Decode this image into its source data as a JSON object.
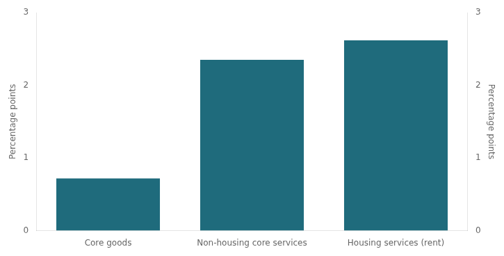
{
  "chart_data": {
    "type": "bar",
    "categories": [
      "Core goods",
      "Non-housing core services",
      "Housing services (rent)"
    ],
    "values": [
      0.72,
      2.35,
      2.62
    ],
    "color": "#1f6b7c",
    "ylim": [
      0,
      3
    ],
    "yticks": [
      0,
      1,
      2,
      3
    ],
    "ylabel": "Percentage points",
    "y2lim": [
      0,
      3
    ],
    "y2ticks": [
      0,
      1,
      2,
      3
    ],
    "y2label": "Percentage points",
    "grid": false
  }
}
